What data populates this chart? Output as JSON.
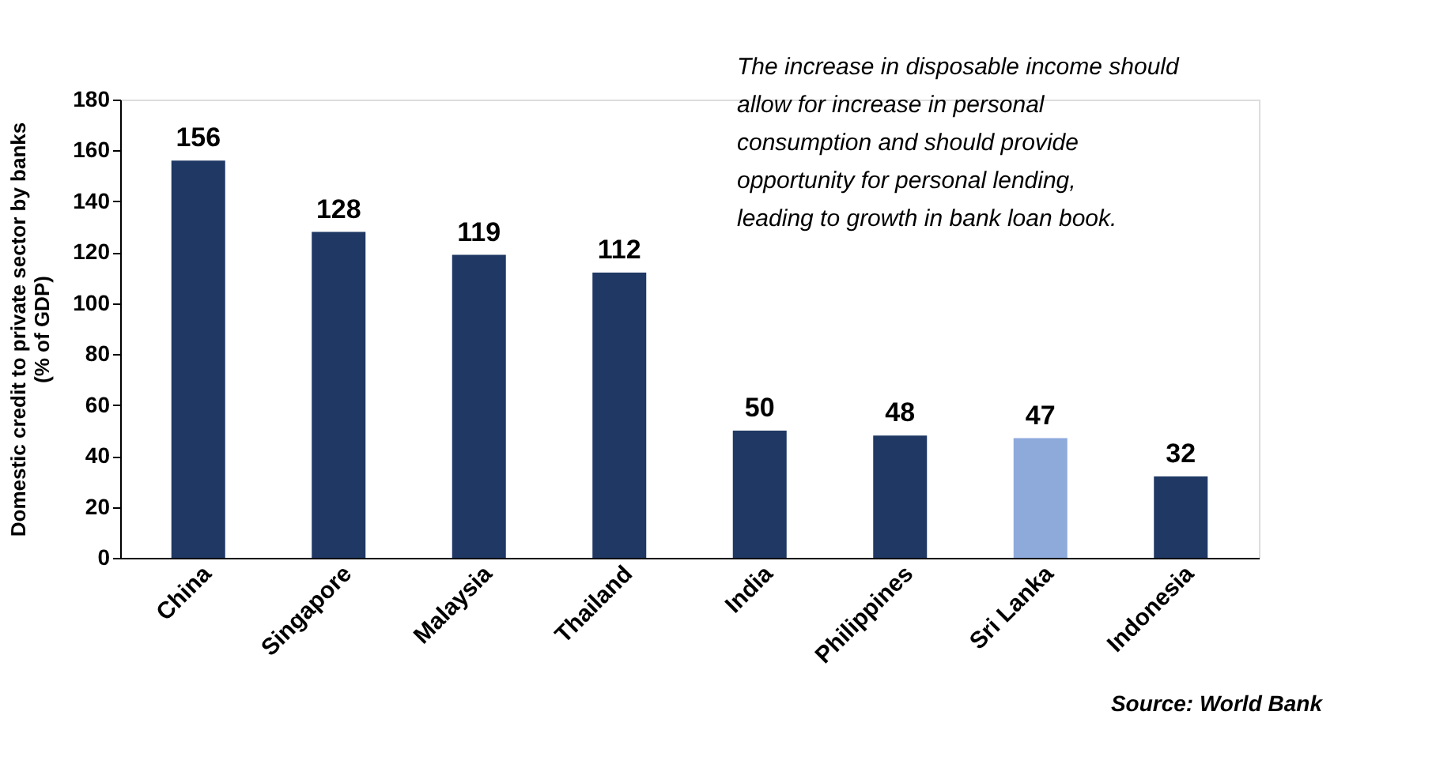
{
  "chart_data": {
    "type": "bar",
    "categories": [
      "China",
      "Singapore",
      "Malaysia",
      "Thailand",
      "India",
      "Philippines",
      "Sri Lanka",
      "Indonesia"
    ],
    "values": [
      156,
      128,
      119,
      112,
      50,
      48,
      47,
      32
    ],
    "colors": [
      "#1f3864",
      "#1f3864",
      "#1f3864",
      "#1f3864",
      "#1f3864",
      "#1f3864",
      "#8eaadb",
      "#1f3864"
    ],
    "ylabel": "Domestic credit to private sector by banks (% of GDP)",
    "ylim": [
      0,
      180
    ],
    "yticks": [
      0,
      20,
      40,
      60,
      80,
      100,
      120,
      140,
      160,
      180
    ],
    "grid": false,
    "data_labels": true,
    "annotations": [
      "The increase in disposable income should allow for increase in personal consumption and should provide opportunity for personal lending, leading to growth in bank loan book.",
      "Source: World Bank"
    ]
  }
}
